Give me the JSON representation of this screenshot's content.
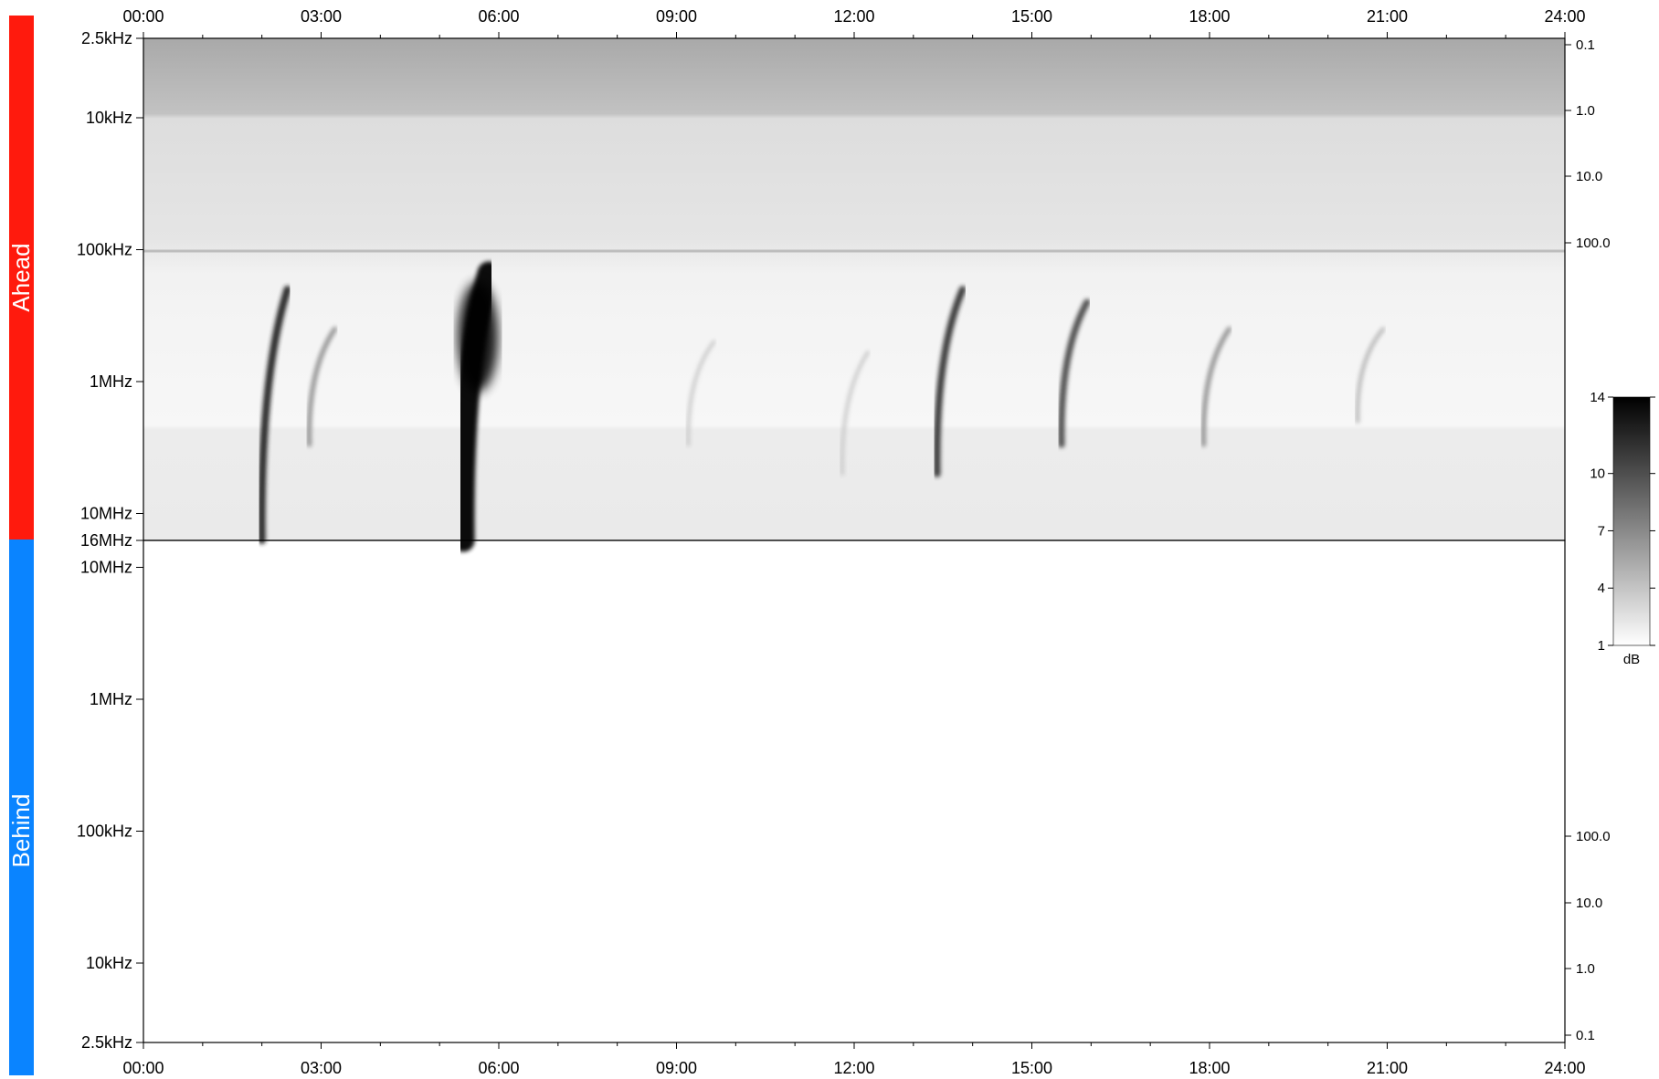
{
  "chart_data": {
    "type": "heatmap",
    "title": "",
    "x": {
      "ticks": [
        "00:00",
        "03:00",
        "06:00",
        "09:00",
        "12:00",
        "15:00",
        "18:00",
        "21:00",
        "24:00"
      ],
      "range_hours": [
        0,
        24
      ]
    },
    "panels": [
      {
        "label": "Ahead",
        "color": "#ff1a0d",
        "freq_ticks": [
          "2.5kHz",
          "10kHz",
          "100kHz",
          "1MHz",
          "10MHz",
          "16MHz"
        ],
        "freq_range_hz": [
          2500,
          16000000
        ],
        "right_ticks": [
          "0.1",
          "1.0",
          "10.0",
          "100.0"
        ],
        "bursts": [
          {
            "t": 2.0,
            "f_start_hz": 200000,
            "f_end_hz": 16000000,
            "intensity_db": 12
          },
          {
            "t": 2.8,
            "f_start_hz": 400000,
            "f_end_hz": 3000000,
            "intensity_db": 6
          },
          {
            "t": 5.4,
            "f_start_hz": 150000,
            "f_end_hz": 16000000,
            "intensity_db": 14
          },
          {
            "t": 9.2,
            "f_start_hz": 500000,
            "f_end_hz": 3000000,
            "intensity_db": 3
          },
          {
            "t": 11.8,
            "f_start_hz": 600000,
            "f_end_hz": 5000000,
            "intensity_db": 3
          },
          {
            "t": 13.4,
            "f_start_hz": 200000,
            "f_end_hz": 5000000,
            "intensity_db": 11
          },
          {
            "t": 15.5,
            "f_start_hz": 250000,
            "f_end_hz": 3000000,
            "intensity_db": 10
          },
          {
            "t": 17.9,
            "f_start_hz": 400000,
            "f_end_hz": 3000000,
            "intensity_db": 6
          },
          {
            "t": 20.5,
            "f_start_hz": 400000,
            "f_end_hz": 2000000,
            "intensity_db": 4
          }
        ]
      },
      {
        "label": "Behind",
        "color": "#0a84ff",
        "freq_ticks": [
          "2.5kHz",
          "10kHz",
          "100kHz",
          "1MHz",
          "10MHz"
        ],
        "freq_range_hz": [
          2500,
          16000000
        ],
        "right_ticks": [
          "0.1",
          "1.0",
          "10.0",
          "100.0"
        ],
        "bursts": []
      }
    ],
    "colorbar": {
      "label": "dB",
      "ticks": [
        "1",
        "4",
        "7",
        "10",
        "14"
      ],
      "range": [
        1,
        14
      ]
    }
  }
}
